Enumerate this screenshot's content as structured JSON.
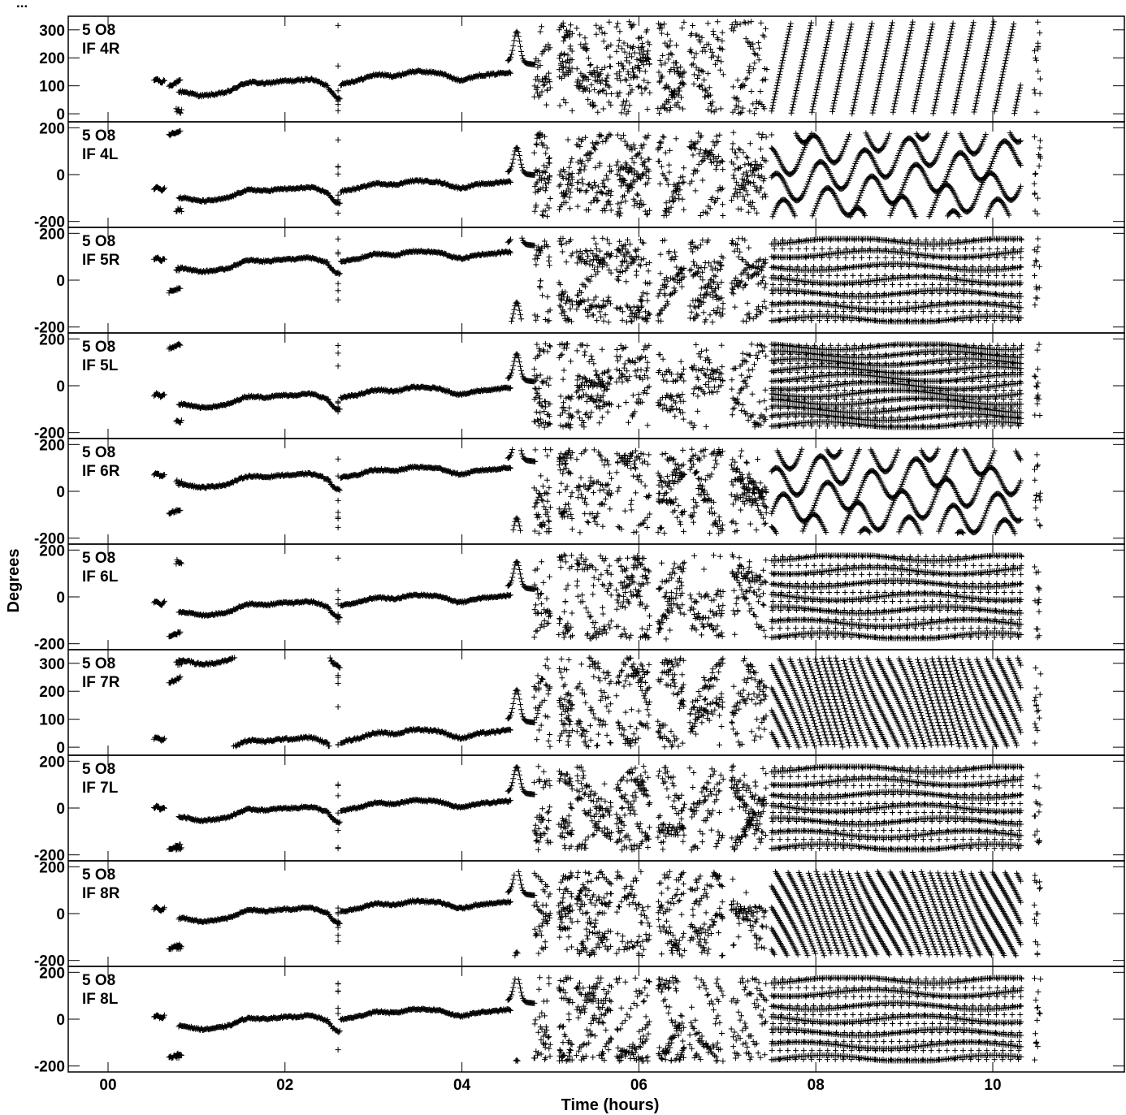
{
  "chart_data": {
    "type": "scatter",
    "marker": "+",
    "colors": {
      "marker": "#000000",
      "frame": "#000000",
      "background": "#ffffff"
    },
    "header_text": "...",
    "xlabel": "Time (hours)",
    "ylabel": "Degrees",
    "x_ticks": [
      "00",
      "02",
      "04",
      "06",
      "08",
      "10"
    ],
    "x_tick_values": [
      0,
      2,
      4,
      6,
      8,
      10
    ],
    "xlim": [
      -0.45,
      11.4
    ],
    "grid": false,
    "legend": "none",
    "panels": [
      {
        "line1": "5 O8",
        "line2": "IF 4R",
        "ylim": [
          -20,
          340
        ],
        "y_ticks": [
          "300",
          "200",
          "100",
          "0"
        ],
        "y_tick_values": [
          300,
          200,
          100,
          0
        ],
        "series": {
          "ph0": 118,
          "off1": 100,
          "off2": 10,
          "wrap_lo": 0,
          "wrap_hi": 330,
          "spike_lo": 0,
          "spike_hi": 330,
          "pattern": "diagonal",
          "rate": 24
        }
      },
      {
        "line1": "5 O8",
        "line2": "IF 4L",
        "ylim": [
          -215,
          215
        ],
        "y_ticks": [
          "200",
          "0",
          "-200"
        ],
        "y_tick_values": [
          200,
          0,
          -200
        ],
        "series": {
          "ph0": -60,
          "off1": 170,
          "off2": -150,
          "wrap_lo": -180,
          "wrap_hi": 180,
          "spike_lo": -180,
          "spike_hi": 180,
          "pattern": "triple",
          "rate": 5
        }
      },
      {
        "line1": "5 O8",
        "line2": "IF 5R",
        "ylim": [
          -215,
          215
        ],
        "y_ticks": [
          "200",
          "0",
          "-200"
        ],
        "y_tick_values": [
          200,
          0,
          -200
        ],
        "series": {
          "ph0": 90,
          "off1": -50,
          "off2": 50,
          "wrap_lo": -180,
          "wrap_hi": 180,
          "spike_lo": -180,
          "spike_hi": 180,
          "pattern": "waves",
          "rate": 7
        }
      },
      {
        "line1": "5 O8",
        "line2": "IF 5L",
        "ylim": [
          -215,
          215
        ],
        "y_ticks": [
          "200",
          "0",
          "-200"
        ],
        "y_tick_values": [
          200,
          0,
          -200
        ],
        "series": {
          "ph0": -40,
          "off1": 160,
          "off2": -150,
          "wrap_lo": -180,
          "wrap_hi": 180,
          "spike_lo": -180,
          "spike_hi": 180,
          "pattern": "dense",
          "rate": 10
        }
      },
      {
        "line1": "5 O8",
        "line2": "IF 6R",
        "ylim": [
          -215,
          215
        ],
        "y_ticks": [
          "200",
          "0",
          "-200"
        ],
        "y_tick_values": [
          200,
          0,
          -200
        ],
        "series": {
          "ph0": 70,
          "off1": -95,
          "off2": 40,
          "wrap_lo": -180,
          "wrap_hi": 180,
          "spike_lo": -180,
          "spike_hi": 180,
          "pattern": "triple",
          "rate": 5
        }
      },
      {
        "line1": "5 O8",
        "line2": "IF 6L",
        "ylim": [
          -215,
          215
        ],
        "y_ticks": [
          "200",
          "0",
          "-200"
        ],
        "y_tick_values": [
          200,
          0,
          -200
        ],
        "series": {
          "ph0": -25,
          "off1": -170,
          "off2": 150,
          "wrap_lo": -180,
          "wrap_hi": 180,
          "spike_lo": -180,
          "spike_hi": 180,
          "pattern": "waves",
          "rate": 7
        }
      },
      {
        "line1": "5 O8",
        "line2": "IF 7R",
        "ylim": [
          -20,
          340
        ],
        "y_ticks": [
          "300",
          "200",
          "100",
          "0"
        ],
        "y_tick_values": [
          300,
          200,
          100,
          0
        ],
        "series": {
          "ph0": 30,
          "off1": 230,
          "off2": 300,
          "wrap_lo": 0,
          "wrap_hi": 320,
          "spike_lo": 0,
          "spike_hi": 320,
          "pattern": "neg_diagonal",
          "rate": 14
        }
      },
      {
        "line1": "5 O8",
        "line2": "IF 7L",
        "ylim": [
          -215,
          215
        ],
        "y_ticks": [
          "200",
          "0",
          "-200"
        ],
        "y_tick_values": [
          200,
          0,
          -200
        ],
        "series": {
          "ph0": 0,
          "off1": -175,
          "off2": -170,
          "wrap_lo": -180,
          "wrap_hi": 180,
          "spike_lo": -180,
          "spike_hi": 180,
          "pattern": "waves",
          "rate": 7
        }
      },
      {
        "line1": "5 O8",
        "line2": "IF 8R",
        "ylim": [
          -215,
          215
        ],
        "y_ticks": [
          "200",
          "0",
          "-200"
        ],
        "y_tick_values": [
          200,
          0,
          -200
        ],
        "series": {
          "ph0": 20,
          "off1": -150,
          "off2": -145,
          "wrap_lo": -180,
          "wrap_hi": 180,
          "spike_lo": -180,
          "spike_hi": 180,
          "pattern": "neg_diagonal",
          "rate": 14
        }
      },
      {
        "line1": "5 O8",
        "line2": "IF 8L",
        "ylim": [
          -215,
          215
        ],
        "y_ticks": [
          "200",
          "0",
          "-200"
        ],
        "y_tick_values": [
          200,
          0,
          -200
        ],
        "series": {
          "ph0": 10,
          "off1": -165,
          "off2": -160,
          "wrap_lo": -180,
          "wrap_hi": 180,
          "spike_lo": -180,
          "spike_hi": 180,
          "pattern": "waves",
          "rate": 7
        }
      }
    ]
  }
}
